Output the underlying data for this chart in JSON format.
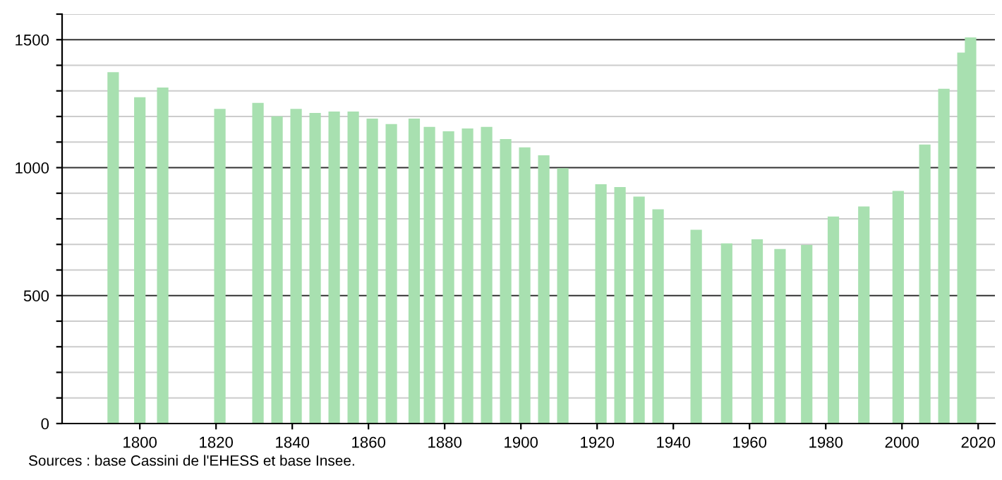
{
  "chart_data": {
    "type": "bar",
    "x": [
      1793,
      1800,
      1806,
      1821,
      1831,
      1836,
      1841,
      1846,
      1851,
      1856,
      1861,
      1866,
      1872,
      1876,
      1881,
      1886,
      1891,
      1896,
      1901,
      1906,
      1911,
      1921,
      1926,
      1931,
      1936,
      1946,
      1954,
      1962,
      1968,
      1975,
      1982,
      1990,
      1999,
      2006,
      2011,
      2016,
      2018
    ],
    "values": [
      1373,
      1275,
      1313,
      1230,
      1253,
      1201,
      1230,
      1214,
      1219,
      1219,
      1192,
      1170,
      1192,
      1159,
      1142,
      1153,
      1159,
      1112,
      1079,
      1048,
      998,
      935,
      924,
      887,
      837,
      757,
      704,
      720,
      682,
      698,
      809,
      848,
      909,
      1090,
      1308,
      1450,
      1509
    ],
    "color": "#a8e0b0",
    "xlim": [
      1779.6,
      2024.4
    ],
    "xticks": [
      1800,
      1820,
      1840,
      1860,
      1880,
      1900,
      1920,
      1940,
      1960,
      1980,
      2000,
      2020
    ],
    "ylim": [
      0,
      1600
    ],
    "yticks": [
      0,
      {
        "value": 100,
        "label": null
      },
      {
        "value": 200,
        "label": null
      },
      {
        "value": 300,
        "label": null
      },
      {
        "value": 400,
        "label": null
      },
      500,
      {
        "value": 600,
        "label": null
      },
      {
        "value": 700,
        "label": null
      },
      {
        "value": 800,
        "label": null
      },
      {
        "value": 900,
        "label": null
      },
      1000,
      {
        "value": 1100,
        "label": null
      },
      {
        "value": 1200,
        "label": null
      },
      {
        "value": 1300,
        "label": null
      },
      {
        "value": 1400,
        "label": null
      },
      1500,
      {
        "value": 1600,
        "label": null
      }
    ],
    "grid": "y",
    "annotations": [
      "Sources : base Cassini de l'EHESS et base Insee."
    ]
  }
}
